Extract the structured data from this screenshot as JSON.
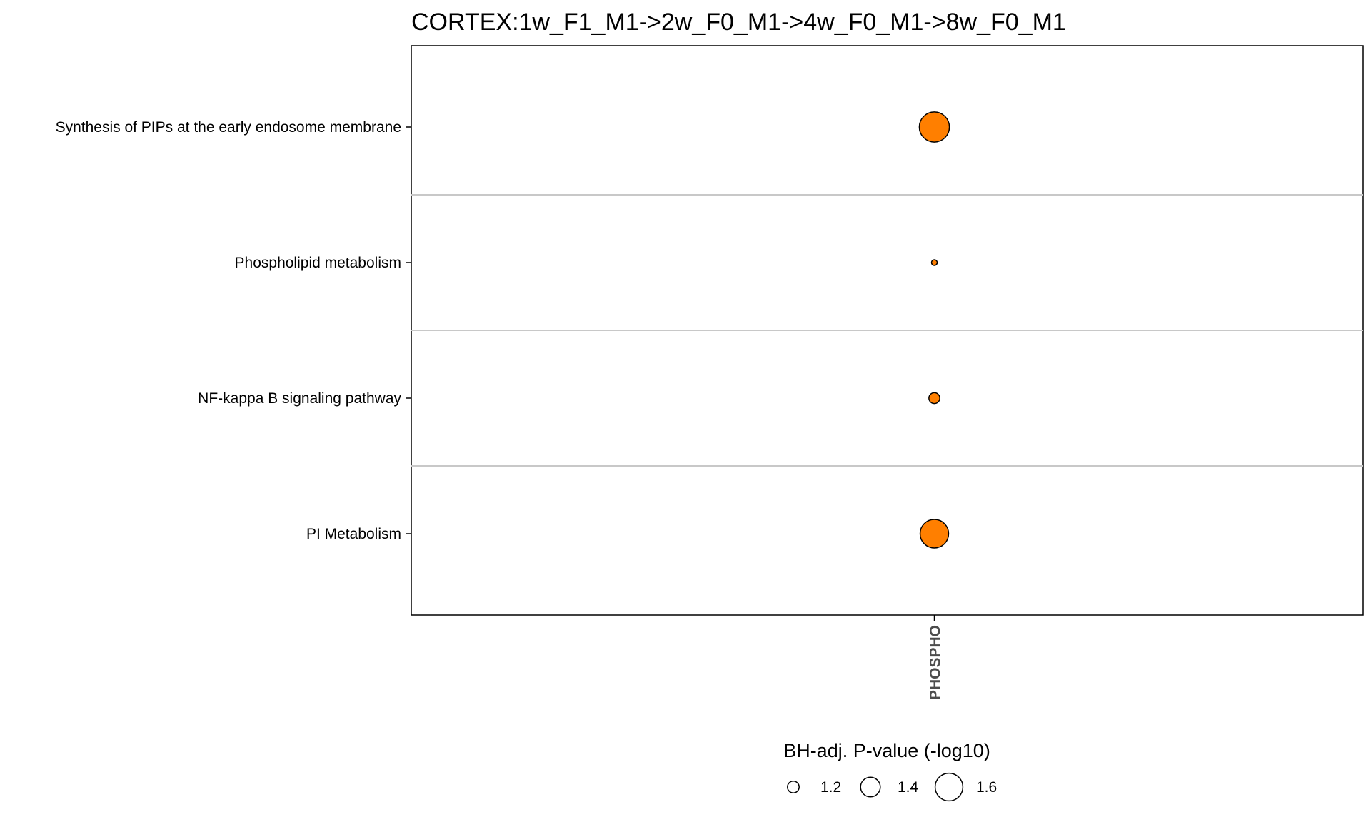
{
  "chart_data": {
    "type": "scatter",
    "title": "CORTEX:1w_F1_M1->2w_F0_M1->4w_F0_M1->8w_F0_M1",
    "categories_x": [
      "PHOSPHO"
    ],
    "categories_y": [
      "Synthesis of PIPs at the early endosome membrane",
      "Phospholipid metabolism",
      "NF-kappa B signaling pathway",
      "PI Metabolism"
    ],
    "points": [
      {
        "x": "PHOSPHO",
        "y": "Synthesis of PIPs at the early endosome membrane",
        "size": 1.66
      },
      {
        "x": "PHOSPHO",
        "y": "Phospholipid metabolism",
        "size": 1.05
      },
      {
        "x": "PHOSPHO",
        "y": "NF-kappa B signaling pathway",
        "size": 1.18
      },
      {
        "x": "PHOSPHO",
        "y": "PI Metabolism",
        "size": 1.62
      }
    ],
    "point_color": "#FF7F00",
    "legend": {
      "title": "BH-adj. P-value (-log10)",
      "position": "bottom",
      "entries": [
        {
          "label": "1.2",
          "size": 1.2
        },
        {
          "label": "1.4",
          "size": 1.4
        },
        {
          "label": "1.6",
          "size": 1.6
        }
      ]
    },
    "grid": "horizontal-between-categories"
  }
}
